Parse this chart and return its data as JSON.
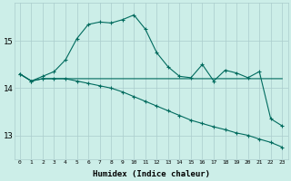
{
  "xlabel": "Humidex (Indice chaleur)",
  "background_color": "#cceee8",
  "grid_color": "#aacccc",
  "line_color": "#006b5e",
  "xlim": [
    -0.5,
    23.5
  ],
  "ylim": [
    12.5,
    15.8
  ],
  "yticks": [
    13,
    14,
    15
  ],
  "xticks": [
    0,
    1,
    2,
    3,
    4,
    5,
    6,
    7,
    8,
    9,
    10,
    11,
    12,
    13,
    14,
    15,
    16,
    17,
    18,
    19,
    20,
    21,
    22,
    23
  ],
  "curve1_x": [
    0,
    1,
    2,
    3,
    4,
    5,
    6,
    7,
    8,
    9,
    10,
    11,
    12,
    13,
    14,
    15,
    16,
    17,
    18,
    19,
    20,
    21,
    22,
    23
  ],
  "curve1_y": [
    14.3,
    14.15,
    14.25,
    14.35,
    14.6,
    15.05,
    15.35,
    15.4,
    15.38,
    15.45,
    15.55,
    15.25,
    14.75,
    14.45,
    14.25,
    14.22,
    14.5,
    14.15,
    14.38,
    14.32,
    14.22,
    14.35,
    13.35,
    13.2
  ],
  "curve2_x": [
    0,
    1,
    2,
    3,
    4,
    5,
    6,
    7,
    8,
    9,
    10,
    11,
    12,
    13,
    14,
    15,
    16,
    17,
    18,
    19,
    20,
    21,
    22,
    23
  ],
  "curve2_y": [
    14.3,
    14.15,
    14.2,
    14.2,
    14.2,
    14.2,
    14.2,
    14.2,
    14.2,
    14.2,
    14.2,
    14.2,
    14.2,
    14.2,
    14.2,
    14.2,
    14.2,
    14.2,
    14.2,
    14.2,
    14.2,
    14.2,
    14.2,
    14.2
  ],
  "curve3_x": [
    0,
    1,
    2,
    3,
    4,
    5,
    6,
    7,
    8,
    9,
    10,
    11,
    12,
    13,
    14,
    15,
    16,
    17,
    18,
    19,
    20,
    21,
    22,
    23
  ],
  "curve3_y": [
    14.3,
    14.15,
    14.2,
    14.2,
    14.2,
    14.15,
    14.1,
    14.05,
    14.0,
    13.92,
    13.82,
    13.72,
    13.62,
    13.52,
    13.42,
    13.32,
    13.25,
    13.18,
    13.12,
    13.05,
    13.0,
    12.92,
    12.85,
    12.75
  ]
}
